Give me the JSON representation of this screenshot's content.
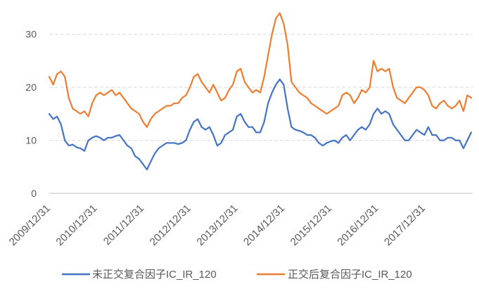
{
  "chart_data": {
    "type": "line",
    "x": [
      "2009-12",
      "2010-01",
      "2010-02",
      "2010-03",
      "2010-04",
      "2010-05",
      "2010-06",
      "2010-07",
      "2010-08",
      "2010-09",
      "2010-10",
      "2010-11",
      "2010-12",
      "2011-01",
      "2011-02",
      "2011-03",
      "2011-04",
      "2011-05",
      "2011-06",
      "2011-07",
      "2011-08",
      "2011-09",
      "2011-10",
      "2011-11",
      "2011-12",
      "2012-01",
      "2012-02",
      "2012-03",
      "2012-04",
      "2012-05",
      "2012-06",
      "2012-07",
      "2012-08",
      "2012-09",
      "2012-10",
      "2012-11",
      "2012-12",
      "2013-01",
      "2013-02",
      "2013-03",
      "2013-04",
      "2013-05",
      "2013-06",
      "2013-07",
      "2013-08",
      "2013-09",
      "2013-10",
      "2013-11",
      "2013-12",
      "2014-01",
      "2014-02",
      "2014-03",
      "2014-04",
      "2014-05",
      "2014-06",
      "2014-07",
      "2014-08",
      "2014-09",
      "2014-10",
      "2014-11",
      "2014-12",
      "2015-01",
      "2015-02",
      "2015-03",
      "2015-04",
      "2015-05",
      "2015-06",
      "2015-07",
      "2015-08",
      "2015-09",
      "2015-10",
      "2015-11",
      "2015-12",
      "2016-01",
      "2016-02",
      "2016-03",
      "2016-04",
      "2016-05",
      "2016-06",
      "2016-07",
      "2016-08",
      "2016-09",
      "2016-10",
      "2016-11",
      "2016-12",
      "2017-01",
      "2017-02",
      "2017-03",
      "2017-04",
      "2017-05",
      "2017-06",
      "2017-07",
      "2017-08",
      "2017-09",
      "2017-10",
      "2017-11",
      "2017-12",
      "2018-01",
      "2018-02",
      "2018-03",
      "2018-04",
      "2018-05",
      "2018-06",
      "2018-07",
      "2018-08",
      "2018-09",
      "2018-10",
      "2018-11",
      "2018-12"
    ],
    "series": [
      {
        "name": "未正交复合因子IC_IR_120",
        "color": "#4472C4",
        "values": [
          15.0,
          14.0,
          14.5,
          13.0,
          10.0,
          9.0,
          9.2,
          8.7,
          8.5,
          8.0,
          10.0,
          10.5,
          10.8,
          10.5,
          10.0,
          10.5,
          10.5,
          10.8,
          11.0,
          10.0,
          9.0,
          8.5,
          7.0,
          6.5,
          5.5,
          4.5,
          6.0,
          7.5,
          8.5,
          9.0,
          9.5,
          9.5,
          9.5,
          9.3,
          9.5,
          10.0,
          12.0,
          13.5,
          14.0,
          12.5,
          12.0,
          12.5,
          11.0,
          9.0,
          9.5,
          11.0,
          11.5,
          12.0,
          14.5,
          15.0,
          13.5,
          12.5,
          12.5,
          11.5,
          11.5,
          13.5,
          17.0,
          19.0,
          20.5,
          21.5,
          20.5,
          16.0,
          12.5,
          12.0,
          11.8,
          11.5,
          11.0,
          11.0,
          10.5,
          9.5,
          9.0,
          9.5,
          9.8,
          10.0,
          9.5,
          10.5,
          11.0,
          10.0,
          11.0,
          12.0,
          12.5,
          12.0,
          13.0,
          15.0,
          16.0,
          15.0,
          15.5,
          15.0,
          13.0,
          12.0,
          11.0,
          10.0,
          10.0,
          11.0,
          12.0,
          11.5,
          11.0,
          12.5,
          11.0,
          11.0,
          10.0,
          10.0,
          10.5,
          10.5,
          10.0,
          10.0,
          8.5,
          10.0,
          11.5
        ]
      },
      {
        "name": "正交后复合因子IC_IR_120",
        "color": "#ED7D31",
        "values": [
          22.0,
          20.5,
          22.5,
          23.0,
          22.0,
          18.0,
          16.0,
          15.5,
          15.0,
          15.5,
          14.5,
          17.0,
          18.5,
          19.0,
          18.5,
          19.0,
          19.5,
          18.5,
          19.0,
          18.0,
          17.0,
          16.0,
          15.5,
          15.0,
          13.5,
          12.5,
          14.0,
          15.0,
          15.5,
          16.0,
          16.5,
          16.5,
          17.0,
          17.0,
          18.0,
          18.5,
          20.0,
          22.0,
          22.5,
          21.0,
          20.0,
          19.0,
          20.5,
          19.0,
          17.5,
          18.0,
          19.5,
          20.5,
          23.0,
          23.5,
          21.0,
          20.0,
          19.0,
          19.5,
          19.0,
          22.0,
          26.0,
          30.0,
          33.0,
          34.0,
          32.0,
          28.0,
          21.0,
          20.0,
          19.0,
          18.5,
          18.0,
          17.0,
          16.5,
          16.0,
          15.5,
          15.0,
          15.5,
          16.0,
          16.5,
          18.5,
          19.0,
          18.5,
          17.0,
          18.0,
          19.5,
          19.0,
          20.0,
          25.0,
          23.0,
          23.5,
          23.0,
          23.5,
          20.0,
          18.0,
          17.5,
          17.0,
          18.0,
          19.0,
          20.0,
          20.0,
          19.5,
          18.5,
          16.5,
          16.0,
          17.0,
          17.5,
          16.5,
          16.0,
          16.5,
          17.5,
          15.5,
          18.5,
          18.0
        ]
      }
    ],
    "x_tick_labels": [
      "2009/12/31",
      "2010/12/31",
      "2011/12/31",
      "2012/12/31",
      "2013/12/31",
      "2014/12/31",
      "2015/12/31",
      "2016/12/31",
      "2017/12/31"
    ],
    "y_ticks": [
      0,
      10,
      20,
      30
    ],
    "xlim": [
      "2009-12",
      "2018-12"
    ],
    "ylim": [
      0,
      35
    ],
    "grid": true,
    "legend": "bottom"
  }
}
